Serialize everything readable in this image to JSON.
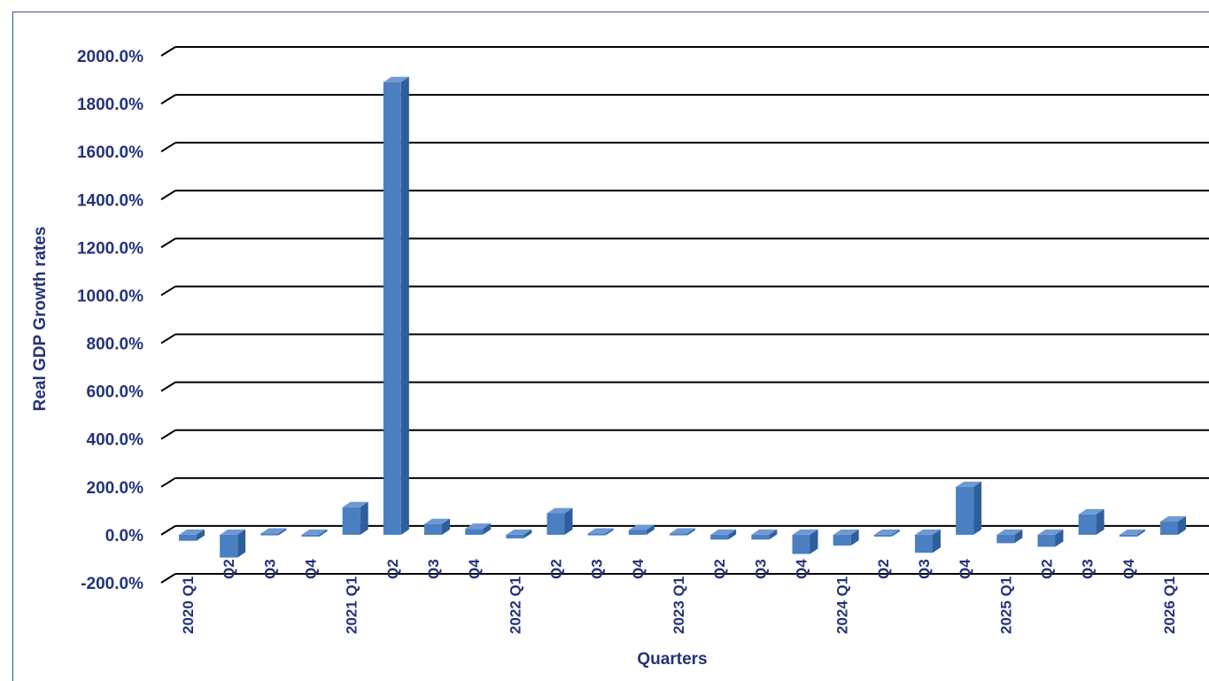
{
  "chart_data": {
    "type": "bar",
    "xlabel": "Quarters",
    "ylabel": "Real GDP Growth rates",
    "ylim": [
      -200,
      2000
    ],
    "yticks": [
      "-200.0%",
      "0.0%",
      "200.0%",
      "400.0%",
      "600.0%",
      "800.0%",
      "1000.0%",
      "1200.0%",
      "1400.0%",
      "1600.0%",
      "1800.0%",
      "2000.0%"
    ],
    "grid": true,
    "categories": [
      {
        "quarter": "Q1",
        "year": "2020"
      },
      {
        "quarter": "Q2",
        "year": ""
      },
      {
        "quarter": "Q3",
        "year": ""
      },
      {
        "quarter": "Q4",
        "year": ""
      },
      {
        "quarter": "Q1",
        "year": "2021"
      },
      {
        "quarter": "Q2",
        "year": ""
      },
      {
        "quarter": "Q3",
        "year": ""
      },
      {
        "quarter": "Q4",
        "year": ""
      },
      {
        "quarter": "Q1",
        "year": "2022"
      },
      {
        "quarter": "Q2",
        "year": ""
      },
      {
        "quarter": "Q3",
        "year": ""
      },
      {
        "quarter": "Q4",
        "year": ""
      },
      {
        "quarter": "Q1",
        "year": "2023"
      },
      {
        "quarter": "Q2",
        "year": ""
      },
      {
        "quarter": "Q3",
        "year": ""
      },
      {
        "quarter": "Q4",
        "year": ""
      },
      {
        "quarter": "Q1",
        "year": "2024"
      },
      {
        "quarter": "Q2",
        "year": ""
      },
      {
        "quarter": "Q3",
        "year": ""
      },
      {
        "quarter": "Q4",
        "year": ""
      },
      {
        "quarter": "Q1",
        "year": "2025"
      },
      {
        "quarter": "Q2",
        "year": ""
      },
      {
        "quarter": "Q3",
        "year": ""
      },
      {
        "quarter": "Q4",
        "year": ""
      },
      {
        "quarter": "Q1",
        "year": "2026"
      }
    ],
    "values": [
      -25,
      -95,
      5,
      -5,
      115,
      1890,
      45,
      25,
      -15,
      90,
      5,
      20,
      5,
      -20,
      -20,
      -80,
      -45,
      -5,
      -75,
      200,
      -35,
      -50,
      85,
      -5,
      55
    ],
    "colors": {
      "bar_front": "#4a7fc1",
      "bar_side": "#2e5f9c",
      "bar_top": "#6d9ad4",
      "grid": "#000000",
      "text": "#24327a",
      "frame": "#3b4f8f"
    }
  }
}
